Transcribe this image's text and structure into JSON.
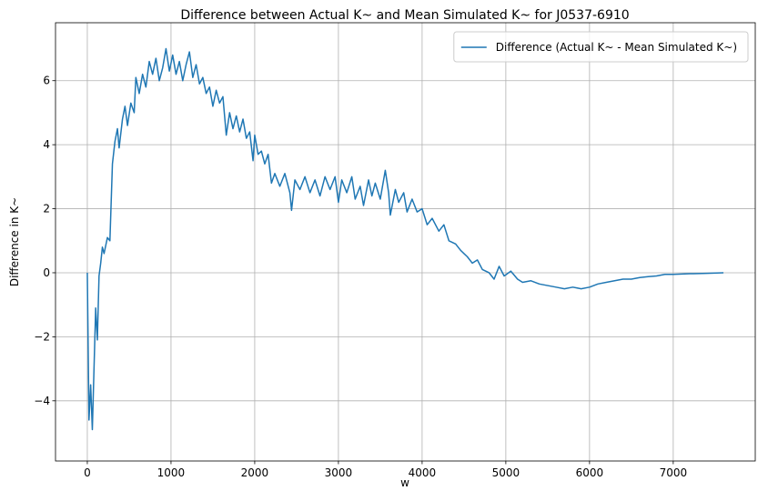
{
  "chart_data": {
    "type": "line",
    "title": "Difference between Actual K~ and Mean Simulated K~ for J0537-6910",
    "xlabel": "w",
    "ylabel": "Difference in K~",
    "x": [
      0,
      20,
      40,
      60,
      80,
      100,
      120,
      140,
      160,
      180,
      200,
      240,
      270,
      300,
      330,
      360,
      380,
      420,
      450,
      480,
      520,
      560,
      580,
      620,
      660,
      700,
      740,
      780,
      820,
      860,
      900,
      940,
      980,
      1020,
      1060,
      1100,
      1140,
      1180,
      1220,
      1260,
      1300,
      1340,
      1380,
      1420,
      1460,
      1500,
      1540,
      1580,
      1620,
      1660,
      1700,
      1740,
      1780,
      1820,
      1860,
      1900,
      1940,
      1980,
      2000,
      2040,
      2080,
      2120,
      2160,
      2200,
      2240,
      2300,
      2360,
      2420,
      2440,
      2480,
      2540,
      2600,
      2660,
      2720,
      2780,
      2840,
      2900,
      2960,
      3000,
      3040,
      3100,
      3160,
      3200,
      3260,
      3300,
      3360,
      3400,
      3440,
      3500,
      3560,
      3600,
      3620,
      3680,
      3720,
      3780,
      3820,
      3880,
      3940,
      4000,
      4060,
      4120,
      4200,
      4260,
      4320,
      4400,
      4460,
      4540,
      4600,
      4660,
      4720,
      4800,
      4860,
      4920,
      4980,
      5060,
      5140,
      5200,
      5300,
      5400,
      5500,
      5600,
      5700,
      5800,
      5900,
      6000,
      6100,
      6200,
      6300,
      6400,
      6500,
      6600,
      6700,
      6800,
      6900,
      7000,
      7200,
      7400,
      7600
    ],
    "series": [
      {
        "name": "Difference (Actual K~ - Mean Simulated K~)",
        "color": "#1f77b4",
        "values": [
          0,
          -4.6,
          -3.5,
          -4.9,
          -3.0,
          -1.1,
          -2.1,
          -0.1,
          0.3,
          0.8,
          0.6,
          1.1,
          1.0,
          3.4,
          4.1,
          4.5,
          3.9,
          4.8,
          5.2,
          4.6,
          5.3,
          5.0,
          6.1,
          5.6,
          6.2,
          5.8,
          6.6,
          6.2,
          6.7,
          6.0,
          6.4,
          7.0,
          6.3,
          6.8,
          6.2,
          6.6,
          6.0,
          6.5,
          6.9,
          6.1,
          6.5,
          5.9,
          6.1,
          5.6,
          5.8,
          5.2,
          5.7,
          5.3,
          5.5,
          4.3,
          5.0,
          4.5,
          4.9,
          4.4,
          4.8,
          4.2,
          4.4,
          3.5,
          4.3,
          3.7,
          3.8,
          3.4,
          3.7,
          2.8,
          3.1,
          2.7,
          3.1,
          2.5,
          1.95,
          2.9,
          2.6,
          3.0,
          2.5,
          2.9,
          2.4,
          3.0,
          2.6,
          3.0,
          2.2,
          2.9,
          2.5,
          3.0,
          2.3,
          2.7,
          2.1,
          2.9,
          2.4,
          2.8,
          2.3,
          3.2,
          2.5,
          1.8,
          2.6,
          2.2,
          2.5,
          1.9,
          2.3,
          1.9,
          2.0,
          1.5,
          1.7,
          1.3,
          1.5,
          1.0,
          0.9,
          0.7,
          0.5,
          0.3,
          0.4,
          0.1,
          0.0,
          -0.2,
          0.2,
          -0.1,
          0.05,
          -0.2,
          -0.3,
          -0.25,
          -0.35,
          -0.4,
          -0.45,
          -0.5,
          -0.45,
          -0.5,
          -0.45,
          -0.35,
          -0.3,
          -0.25,
          -0.2,
          -0.2,
          -0.15,
          -0.12,
          -0.1,
          -0.05,
          -0.05,
          -0.03,
          -0.02,
          0.0
        ]
      }
    ],
    "xlim": [
      -380,
      7980
    ],
    "ylim": [
      -5.88,
      7.81
    ],
    "xticks": [
      0,
      1000,
      2000,
      3000,
      4000,
      5000,
      6000,
      7000
    ],
    "yticks": [
      {
        "value": -4,
        "label": "−4"
      },
      {
        "value": -2,
        "label": "−2"
      },
      0,
      2,
      4,
      6
    ],
    "grid": true,
    "legend": "upper right"
  }
}
